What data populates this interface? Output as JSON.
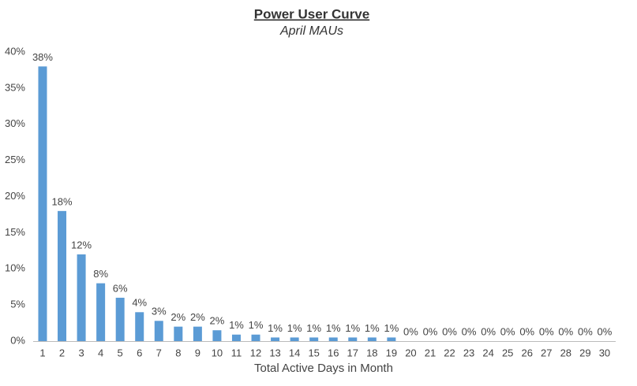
{
  "chart_data": {
    "type": "bar",
    "title": "Power User Curve",
    "subtitle": "April MAUs",
    "x_label": "Total Active Days in Month",
    "categories": [
      "1",
      "2",
      "3",
      "4",
      "5",
      "6",
      "7",
      "8",
      "9",
      "10",
      "11",
      "12",
      "13",
      "14",
      "15",
      "16",
      "17",
      "18",
      "19",
      "20",
      "21",
      "22",
      "23",
      "24",
      "25",
      "26",
      "27",
      "28",
      "29",
      "30"
    ],
    "values": [
      38,
      18,
      12,
      8,
      6,
      4,
      2.8,
      2,
      2,
      1.5,
      0.9,
      0.9,
      0.5,
      0.5,
      0.5,
      0.5,
      0.5,
      0.5,
      0.5,
      0,
      0,
      0,
      0,
      0,
      0,
      0,
      0,
      0,
      0,
      0
    ],
    "value_labels": [
      "38%",
      "18%",
      "12%",
      "8%",
      "6%",
      "4%",
      "3%",
      "2%",
      "2%",
      "2%",
      "1%",
      "1%",
      "1%",
      "1%",
      "1%",
      "1%",
      "1%",
      "1%",
      "1%",
      "0%",
      "0%",
      "0%",
      "0%",
      "0%",
      "0%",
      "0%",
      "0%",
      "0%",
      "0%",
      "0%"
    ],
    "color": "#5b9bd5",
    "ylim": [
      0,
      40
    ],
    "yticks": [
      {
        "value": 0,
        "label": "0%"
      },
      {
        "value": 5,
        "label": "5%"
      },
      {
        "value": 10,
        "label": "10%"
      },
      {
        "value": 15,
        "label": "15%"
      },
      {
        "value": 20,
        "label": "20%"
      },
      {
        "value": 25,
        "label": "25%"
      },
      {
        "value": 30,
        "label": "30%"
      },
      {
        "value": 35,
        "label": "35%"
      },
      {
        "value": 40,
        "label": "40%"
      }
    ],
    "grid": false
  }
}
